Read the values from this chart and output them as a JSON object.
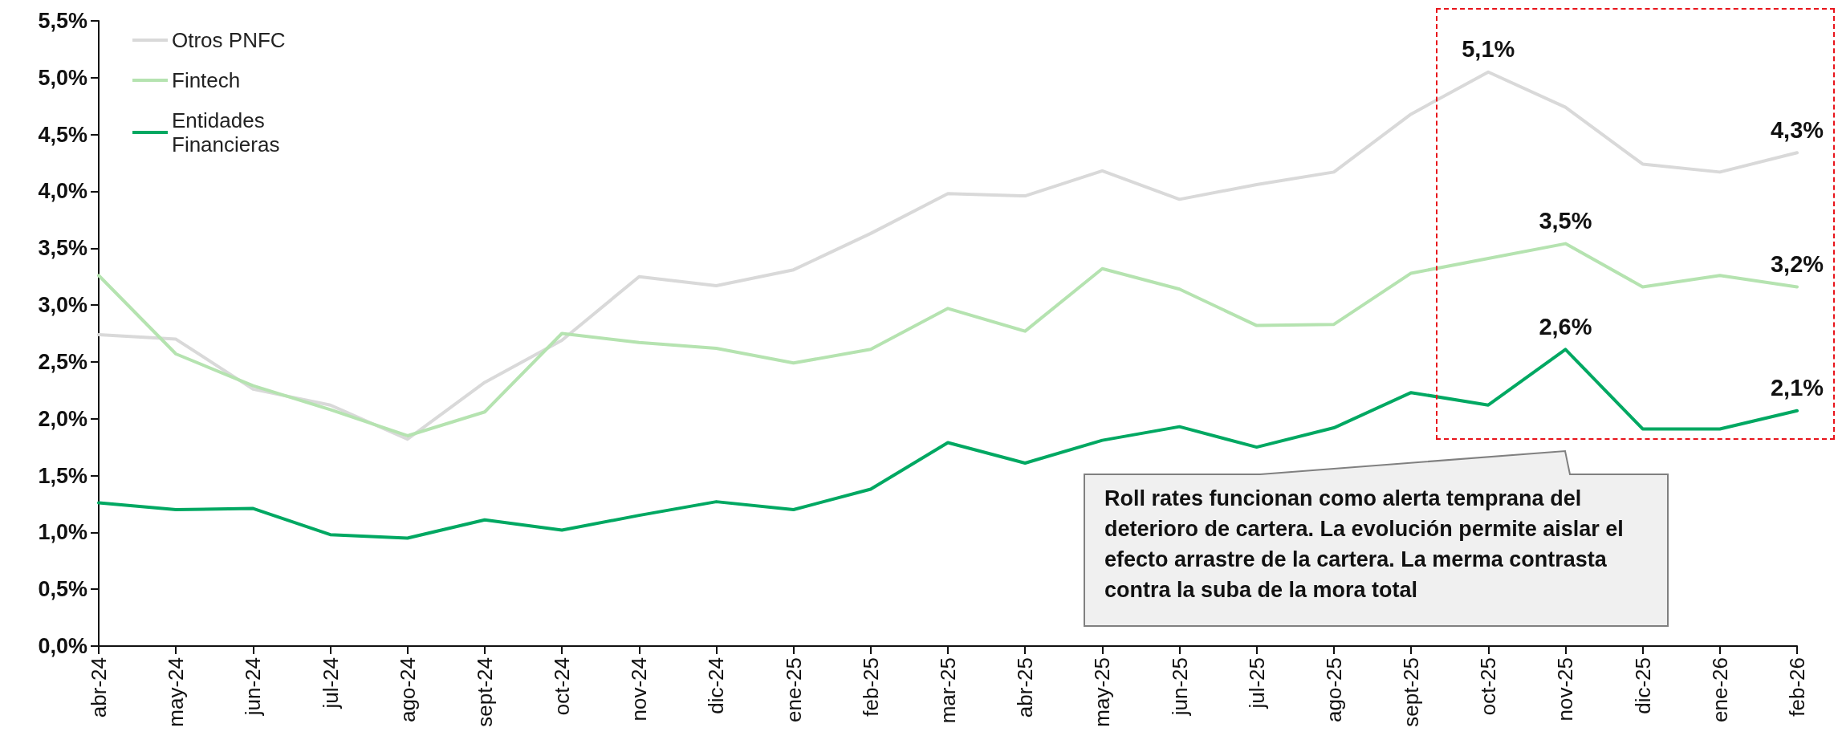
{
  "chart_data": {
    "type": "line",
    "categories": [
      "abr-24",
      "may-24",
      "jun-24",
      "jul-24",
      "ago-24",
      "sept-24",
      "oct-24",
      "nov-24",
      "dic-24",
      "ene-25",
      "feb-25",
      "mar-25",
      "abr-25",
      "may-25",
      "jun-25",
      "jul-25",
      "ago-25",
      "sept-25",
      "oct-25",
      "nov-25",
      "dic-25",
      "ene-26",
      "feb-26"
    ],
    "series": [
      {
        "name": "Otros PNFC",
        "color": "#d9d9d9",
        "values": [
          2.74,
          2.7,
          2.26,
          2.12,
          1.82,
          2.32,
          2.69,
          3.25,
          3.17,
          3.31,
          3.63,
          3.98,
          3.96,
          4.18,
          3.93,
          4.06,
          4.17,
          4.68,
          5.05,
          4.74,
          4.24,
          4.17,
          4.34
        ],
        "value_labels": [
          null,
          null,
          null,
          null,
          null,
          null,
          null,
          null,
          null,
          null,
          null,
          null,
          null,
          null,
          null,
          null,
          null,
          null,
          "5,1%",
          null,
          null,
          null,
          "4,3%"
        ]
      },
      {
        "name": "Fintech",
        "color": "#b5e3b0",
        "values": [
          3.26,
          2.57,
          2.29,
          2.08,
          1.85,
          2.06,
          2.75,
          2.67,
          2.62,
          2.49,
          2.61,
          2.97,
          2.77,
          3.32,
          3.14,
          2.82,
          2.83,
          3.28,
          3.41,
          3.54,
          3.16,
          3.26,
          3.16
        ],
        "value_labels": [
          null,
          null,
          null,
          null,
          null,
          null,
          null,
          null,
          null,
          null,
          null,
          null,
          null,
          null,
          null,
          null,
          null,
          null,
          null,
          "3,5%",
          null,
          null,
          "3,2%"
        ]
      },
      {
        "name": "Entidades Financieras",
        "color": "#00a862",
        "values": [
          1.26,
          1.2,
          1.21,
          0.98,
          0.95,
          1.11,
          1.02,
          1.15,
          1.27,
          1.2,
          1.38,
          1.79,
          1.61,
          1.81,
          1.93,
          1.75,
          1.92,
          2.23,
          2.12,
          2.61,
          1.91,
          1.91,
          2.07
        ],
        "value_labels": [
          null,
          null,
          null,
          null,
          null,
          null,
          null,
          null,
          null,
          null,
          null,
          null,
          null,
          null,
          null,
          null,
          null,
          null,
          null,
          "2,6%",
          null,
          null,
          "2,1%"
        ]
      }
    ],
    "ylim": [
      0,
      5.5
    ],
    "yticks": [
      {
        "value": 0,
        "label": "0,0%"
      },
      {
        "value": 0.5,
        "label": "0,5%"
      },
      {
        "value": 1,
        "label": "1,0%"
      },
      {
        "value": 1.5,
        "label": "1,5%"
      },
      {
        "value": 2,
        "label": "2,0%"
      },
      {
        "value": 2.5,
        "label": "2,5%"
      },
      {
        "value": 3,
        "label": "3,0%"
      },
      {
        "value": 3.5,
        "label": "3,5%"
      },
      {
        "value": 4,
        "label": "4,0%"
      },
      {
        "value": 4.5,
        "label": "4,5%"
      },
      {
        "value": 5,
        "label": "5,0%"
      },
      {
        "value": 5.5,
        "label": "5,5%"
      }
    ],
    "annotations": [
      "Roll rates funcionan como alerta temprana del deterioro de cartera. La evolución permite aislar el efecto arrastre de la cartera. La merma contrasta contra la suba de la mora total"
    ],
    "legend": "top left",
    "grid": false,
    "marker": "none",
    "line_style": "solid"
  }
}
